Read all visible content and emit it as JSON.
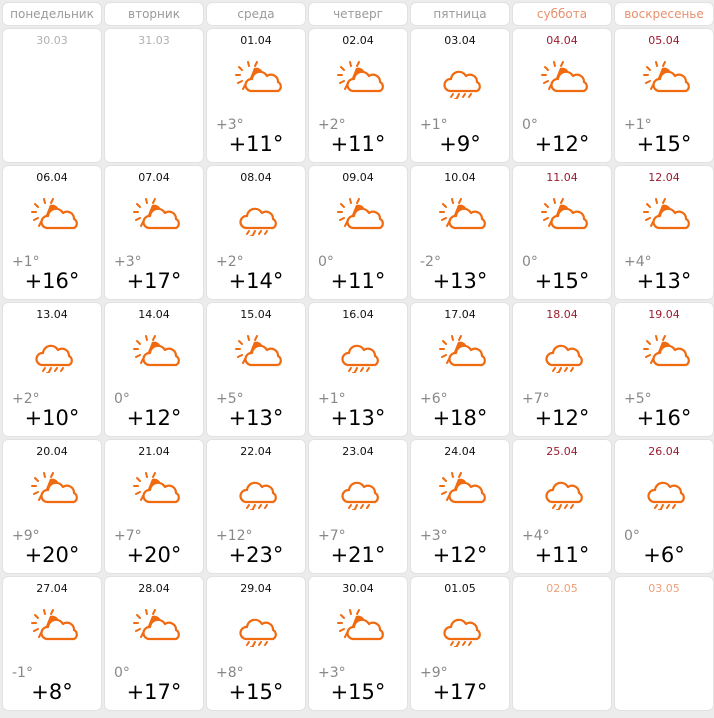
{
  "accent": "#f06a10",
  "weekdays": [
    {
      "label": "понедельник",
      "weekend": false
    },
    {
      "label": "вторник",
      "weekend": false
    },
    {
      "label": "среда",
      "weekend": false
    },
    {
      "label": "четверг",
      "weekend": false
    },
    {
      "label": "пятница",
      "weekend": false
    },
    {
      "label": "суббота",
      "weekend": true
    },
    {
      "label": "воскресенье",
      "weekend": true
    }
  ],
  "days": [
    {
      "date": "30.03",
      "state": "muted"
    },
    {
      "date": "31.03",
      "state": "muted"
    },
    {
      "date": "01.04",
      "icon": "partly-cloudy-icon",
      "min": "+3°",
      "max": "+11°"
    },
    {
      "date": "02.04",
      "icon": "partly-cloudy-icon",
      "min": "+2°",
      "max": "+11°"
    },
    {
      "date": "03.04",
      "icon": "rain-icon",
      "min": "+1°",
      "max": "+9°"
    },
    {
      "date": "04.04",
      "icon": "partly-cloudy-icon",
      "min": "0°",
      "max": "+12°"
    },
    {
      "date": "05.04",
      "icon": "partly-cloudy-icon",
      "min": "+1°",
      "max": "+15°"
    },
    {
      "date": "06.04",
      "icon": "partly-cloudy-icon",
      "min": "+1°",
      "max": "+16°"
    },
    {
      "date": "07.04",
      "icon": "partly-cloudy-icon",
      "min": "+3°",
      "max": "+17°"
    },
    {
      "date": "08.04",
      "icon": "rain-icon",
      "min": "+2°",
      "max": "+14°"
    },
    {
      "date": "09.04",
      "icon": "partly-cloudy-icon",
      "min": "0°",
      "max": "+11°"
    },
    {
      "date": "10.04",
      "icon": "partly-cloudy-icon",
      "min": "-2°",
      "max": "+13°"
    },
    {
      "date": "11.04",
      "icon": "partly-cloudy-icon",
      "min": "0°",
      "max": "+15°"
    },
    {
      "date": "12.04",
      "icon": "partly-cloudy-icon",
      "min": "+4°",
      "max": "+13°"
    },
    {
      "date": "13.04",
      "icon": "rain-icon",
      "min": "+2°",
      "max": "+10°"
    },
    {
      "date": "14.04",
      "icon": "partly-cloudy-icon",
      "min": "0°",
      "max": "+12°"
    },
    {
      "date": "15.04",
      "icon": "partly-cloudy-icon",
      "min": "+5°",
      "max": "+13°"
    },
    {
      "date": "16.04",
      "icon": "rain-icon",
      "min": "+1°",
      "max": "+13°"
    },
    {
      "date": "17.04",
      "icon": "partly-cloudy-icon",
      "min": "+6°",
      "max": "+18°"
    },
    {
      "date": "18.04",
      "icon": "rain-icon",
      "min": "+7°",
      "max": "+12°"
    },
    {
      "date": "19.04",
      "icon": "partly-cloudy-icon",
      "min": "+5°",
      "max": "+16°"
    },
    {
      "date": "20.04",
      "icon": "partly-cloudy-icon",
      "min": "+9°",
      "max": "+20°"
    },
    {
      "date": "21.04",
      "icon": "partly-cloudy-icon",
      "min": "+7°",
      "max": "+20°"
    },
    {
      "date": "22.04",
      "icon": "rain-icon",
      "min": "+12°",
      "max": "+23°"
    },
    {
      "date": "23.04",
      "icon": "rain-icon",
      "min": "+7°",
      "max": "+21°"
    },
    {
      "date": "24.04",
      "icon": "partly-cloudy-icon",
      "min": "+3°",
      "max": "+12°"
    },
    {
      "date": "25.04",
      "icon": "rain-icon",
      "min": "+4°",
      "max": "+11°"
    },
    {
      "date": "26.04",
      "icon": "rain-icon",
      "min": "0°",
      "max": "+6°"
    },
    {
      "date": "27.04",
      "icon": "partly-cloudy-icon",
      "min": "-1°",
      "max": "+8°"
    },
    {
      "date": "28.04",
      "icon": "partly-cloudy-icon",
      "min": "0°",
      "max": "+17°"
    },
    {
      "date": "29.04",
      "icon": "rain-icon",
      "min": "+8°",
      "max": "+15°"
    },
    {
      "date": "30.04",
      "icon": "partly-cloudy-icon",
      "min": "+3°",
      "max": "+15°"
    },
    {
      "date": "01.05",
      "icon": "rain-icon",
      "min": "+9°",
      "max": "+17°"
    },
    {
      "date": "02.05",
      "state": "next"
    },
    {
      "date": "03.05",
      "state": "next"
    }
  ]
}
